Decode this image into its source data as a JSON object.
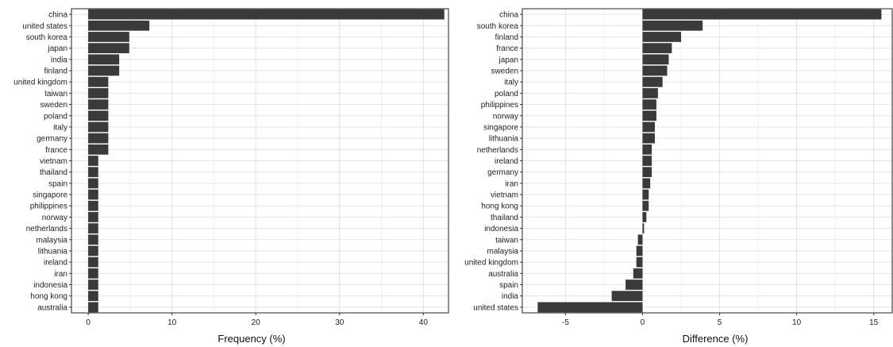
{
  "chart_data": [
    {
      "type": "bar",
      "orientation": "horizontal",
      "xlabel": "Frequency (%)",
      "ylabel": "",
      "xlim": [
        -2,
        43
      ],
      "xticks": [
        0,
        10,
        20,
        30,
        40
      ],
      "grid": true,
      "categories": [
        "china",
        "united states",
        "south korea",
        "japan",
        "india",
        "finland",
        "united kingdom",
        "taiwan",
        "sweden",
        "poland",
        "italy",
        "germany",
        "france",
        "vietnam",
        "thailand",
        "spain",
        "singapore",
        "philippines",
        "norway",
        "netherlands",
        "malaysia",
        "lithuania",
        "ireland",
        "iran",
        "indonesia",
        "hong kong",
        "australia"
      ],
      "values": [
        42.5,
        7.3,
        4.9,
        4.9,
        3.7,
        3.7,
        2.4,
        2.4,
        2.4,
        2.4,
        2.4,
        2.4,
        2.4,
        1.2,
        1.2,
        1.2,
        1.2,
        1.2,
        1.2,
        1.2,
        1.2,
        1.2,
        1.2,
        1.2,
        1.2,
        1.2,
        1.2
      ]
    },
    {
      "type": "bar",
      "orientation": "horizontal",
      "xlabel": "Difference (%)",
      "ylabel": "",
      "xlim": [
        -7.8,
        16.2
      ],
      "xticks": [
        -5,
        0,
        5,
        10,
        15
      ],
      "grid": true,
      "categories": [
        "china",
        "south korea",
        "finland",
        "france",
        "japan",
        "sweden",
        "italy",
        "poland",
        "philippines",
        "norway",
        "singapore",
        "lithuania",
        "netherlands",
        "ireland",
        "germany",
        "iran",
        "vietnam",
        "hong kong",
        "thailand",
        "indonesia",
        "taiwan",
        "malaysia",
        "united kingdom",
        "australia",
        "spain",
        "india",
        "united states"
      ],
      "values": [
        15.5,
        3.9,
        2.5,
        1.9,
        1.7,
        1.6,
        1.3,
        1.0,
        0.9,
        0.9,
        0.8,
        0.8,
        0.6,
        0.6,
        0.6,
        0.5,
        0.4,
        0.4,
        0.25,
        0.1,
        -0.3,
        -0.4,
        -0.4,
        -0.6,
        -1.1,
        -2.0,
        -6.8
      ]
    }
  ]
}
